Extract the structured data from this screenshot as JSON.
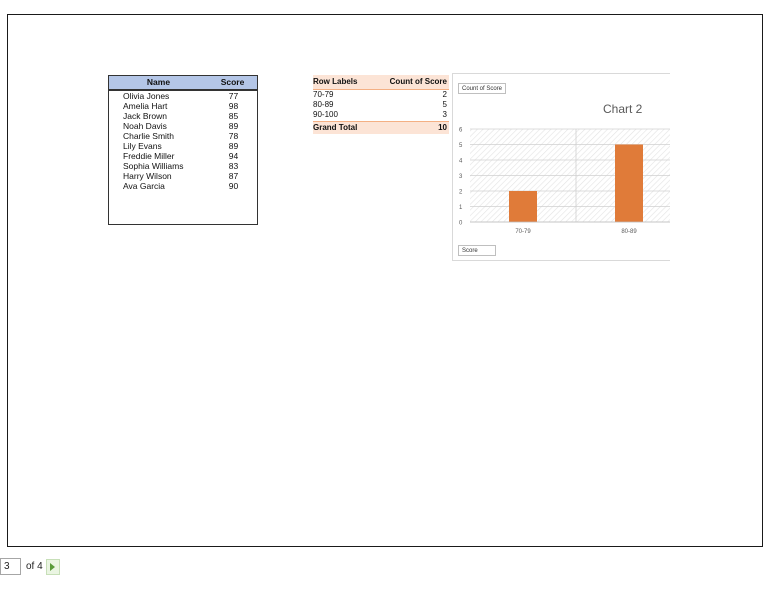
{
  "table": {
    "headers": [
      "Name",
      "Score"
    ],
    "rows": [
      {
        "name": "Olivia Jones",
        "score": "77"
      },
      {
        "name": "Amelia Hart",
        "score": "98"
      },
      {
        "name": "Jack Brown",
        "score": "85"
      },
      {
        "name": "Noah Davis",
        "score": "89"
      },
      {
        "name": "Charlie Smith",
        "score": "78"
      },
      {
        "name": "Lily Evans",
        "score": "89"
      },
      {
        "name": "Freddie Miller",
        "score": "94"
      },
      {
        "name": "Sophia Williams",
        "score": "83"
      },
      {
        "name": "Harry Wilson",
        "score": "87"
      },
      {
        "name": "Ava Garcia",
        "score": "90"
      }
    ]
  },
  "pivot": {
    "headers": [
      "Row Labels",
      "Count of Score"
    ],
    "rows": [
      {
        "label": "70-79",
        "count": "2"
      },
      {
        "label": "80-89",
        "count": "5"
      },
      {
        "label": "90-100",
        "count": "3"
      }
    ],
    "total": {
      "label": "Grand Total",
      "count": "10"
    }
  },
  "chart": {
    "value_field_button": "Count of Score",
    "axis_field_button": "Score"
  },
  "chart_data": {
    "type": "bar",
    "title": "Chart 2",
    "categories": [
      "70-79",
      "80-89"
    ],
    "values": [
      2,
      5
    ],
    "ylim": [
      0,
      6
    ],
    "yticks": [
      "0",
      "1",
      "2",
      "3",
      "4",
      "5",
      "6"
    ],
    "grid": true,
    "bar_color": "#e07b39"
  },
  "pager": {
    "current_page": "3",
    "of_label": "of 4"
  }
}
